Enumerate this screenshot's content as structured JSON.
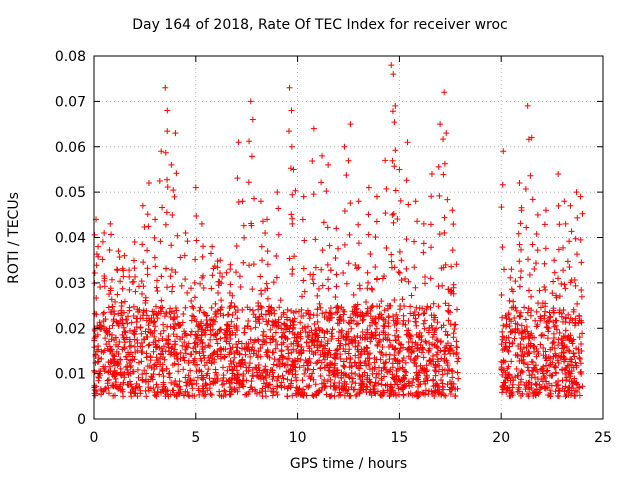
{
  "chart_data": {
    "type": "scatter",
    "title": "Day 164 of 2018, Rate Of TEC Index for receiver wroc",
    "xlabel": "GPS time / hours",
    "ylabel": "ROTI / TECUs",
    "xlim": [
      0,
      25
    ],
    "ylim": [
      0,
      0.08
    ],
    "xticks": [
      0,
      5,
      10,
      15,
      20,
      25
    ],
    "yticks": [
      0,
      0.01,
      0.02,
      0.03,
      0.04,
      0.05,
      0.06,
      0.07,
      0.08
    ],
    "xtick_labels": [
      "0",
      "5",
      "10",
      "15",
      "20",
      "25"
    ],
    "ytick_labels": [
      "0",
      "0.01",
      "0.02",
      "0.03",
      "0.04",
      "0.05",
      "0.06",
      "0.07",
      "0.08"
    ],
    "grid": true,
    "marker": "+",
    "color": "#ff0000",
    "series": [
      {
        "name": "ROTI",
        "segments": [
          [
            0,
            17.9
          ],
          [
            20.0,
            24.0
          ]
        ],
        "base_range": [
          0.005,
          0.025
        ],
        "x": [
          0.1,
          0.2,
          0.5,
          0.8,
          1.2,
          1.5,
          2.0,
          2.4,
          2.7,
          3.0,
          3.3,
          3.5,
          3.6,
          3.8,
          4.0,
          4.5,
          5.0,
          5.3,
          5.8,
          6.2,
          6.7,
          7.1,
          7.3,
          7.7,
          7.8,
          8.2,
          8.5,
          9.0,
          9.6,
          9.7,
          9.8,
          10.3,
          10.8,
          11.2,
          11.5,
          11.9,
          12.3,
          12.6,
          13.0,
          13.5,
          13.9,
          14.3,
          14.6,
          14.7,
          14.8,
          15.0,
          15.4,
          15.8,
          16.2,
          16.6,
          17.0,
          17.2,
          17.3,
          17.6,
          20.1,
          20.5,
          20.9,
          21.0,
          21.3,
          21.5,
          21.8,
          22.2,
          22.6,
          22.8,
          23.1,
          23.4,
          23.7,
          23.9
        ],
        "y": [
          0.044,
          0.038,
          0.041,
          0.043,
          0.037,
          0.036,
          0.039,
          0.047,
          0.052,
          0.044,
          0.059,
          0.073,
          0.068,
          0.056,
          0.063,
          0.041,
          0.051,
          0.043,
          0.038,
          0.035,
          0.034,
          0.061,
          0.048,
          0.07,
          0.066,
          0.048,
          0.044,
          0.05,
          0.073,
          0.068,
          0.055,
          0.049,
          0.064,
          0.058,
          0.056,
          0.042,
          0.06,
          0.065,
          0.048,
          0.051,
          0.049,
          0.057,
          0.078,
          0.076,
          0.069,
          0.055,
          0.061,
          0.048,
          0.043,
          0.054,
          0.065,
          0.072,
          0.063,
          0.046,
          0.059,
          0.033,
          0.052,
          0.046,
          0.069,
          0.062,
          0.045,
          0.046,
          0.035,
          0.054,
          0.048,
          0.047,
          0.05,
          0.049
        ]
      }
    ]
  }
}
